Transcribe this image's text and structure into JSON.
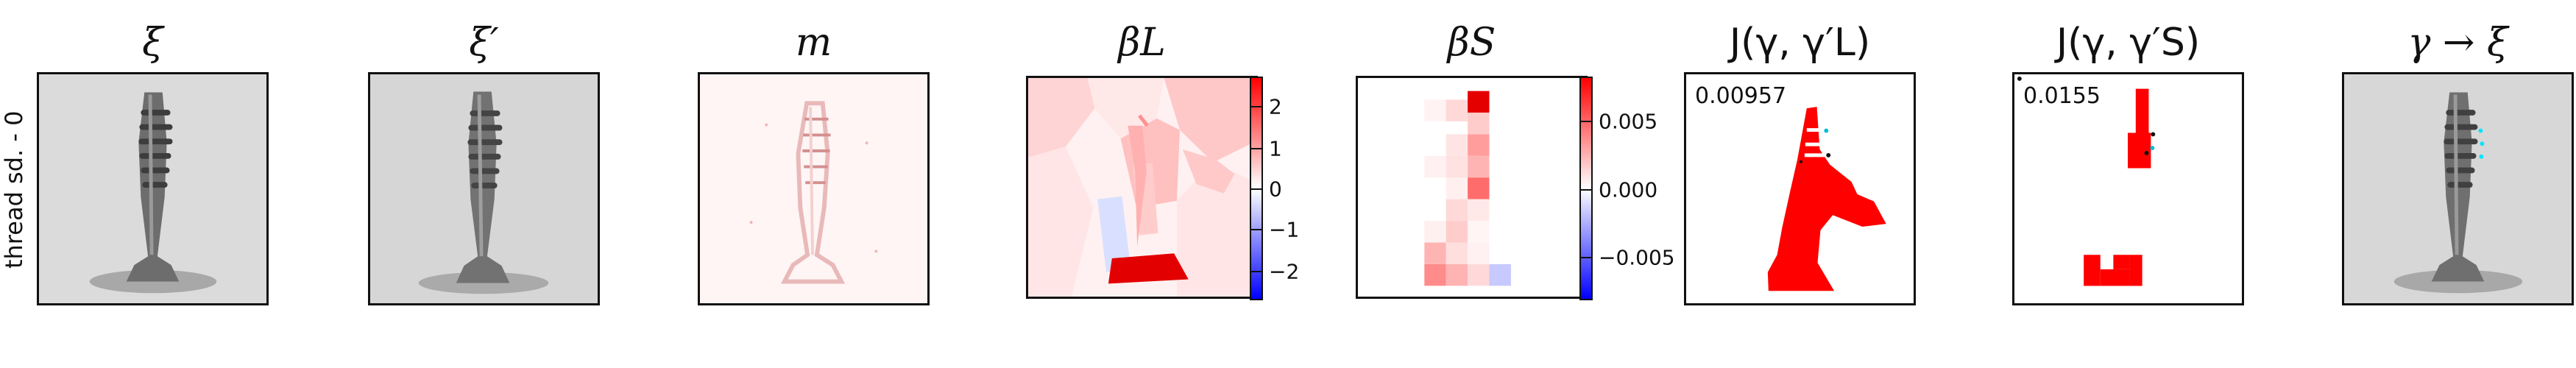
{
  "figure": {
    "row_label": "thread sd. - 0",
    "titles": {
      "xi": "ξ",
      "xi_prime": "ξ′",
      "m": "m",
      "beta_l": "βL",
      "beta_s": "βS",
      "j_l": "J(γ, γ′L)",
      "j_s": "J(γ, γ′S)",
      "gamma_xi": "γ → ξ"
    },
    "scores": {
      "j_l": "0.00957",
      "j_s": "0.0155"
    },
    "colorbars": {
      "beta_l": [
        "2",
        "1",
        "0",
        "−1",
        "−2"
      ],
      "beta_s": [
        "0.005",
        "0.000",
        "−0.005"
      ]
    },
    "colors": {
      "red": "#ff0000",
      "blue": "#0000ff",
      "screw_gray": "#666666",
      "panel_gray": "#d9d9d9",
      "cyan": "#00e5ff"
    }
  }
}
